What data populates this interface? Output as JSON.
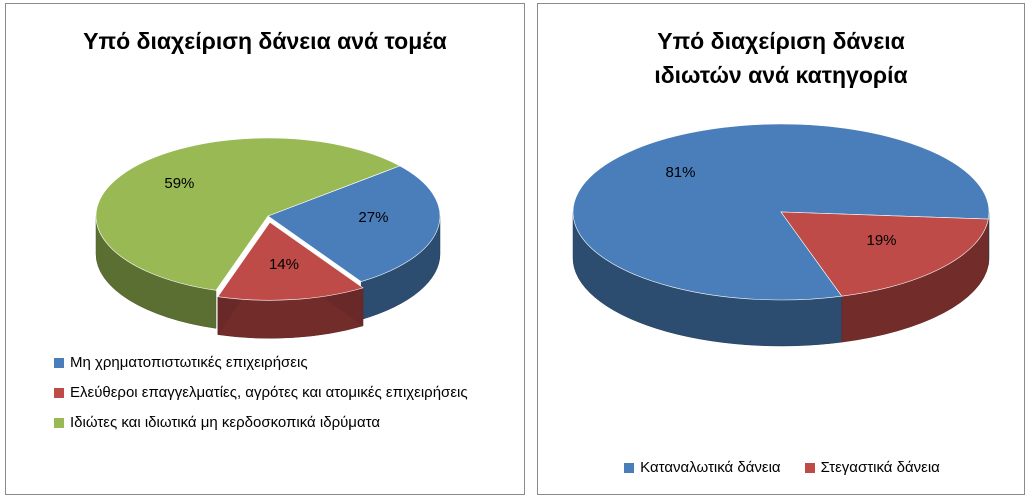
{
  "chart_data": [
    {
      "type": "pie",
      "title": "Υπό διαχείριση δάνεια ανά τομέα",
      "categories": [
        "Μη χρηματοπιστωτικές επιχειρήσεις",
        "Ελεύθεροι επαγγελματίες, αγρότες και ατομικές επιχειρήσεις",
        "Ιδιώτες και ιδιωτικά μη κερδοσκοπικά ιδρύματα"
      ],
      "values": [
        27,
        14,
        59
      ],
      "value_labels": [
        "27%",
        "14%",
        "59%"
      ],
      "colors": [
        "#4a7ebb",
        "#be4b48",
        "#98b954"
      ],
      "legend": "bottom"
    },
    {
      "type": "pie",
      "title": "Υπό διαχείριση δάνεια ιδιωτών ανά κατηγορία",
      "categories": [
        "Καταναλωτικά δάνεια",
        "Στεγαστικά δάνεια"
      ],
      "values": [
        81,
        19
      ],
      "value_labels": [
        "81%",
        "19%"
      ],
      "colors": [
        "#4a7ebb",
        "#be4b48"
      ],
      "legend": "bottom"
    }
  ]
}
